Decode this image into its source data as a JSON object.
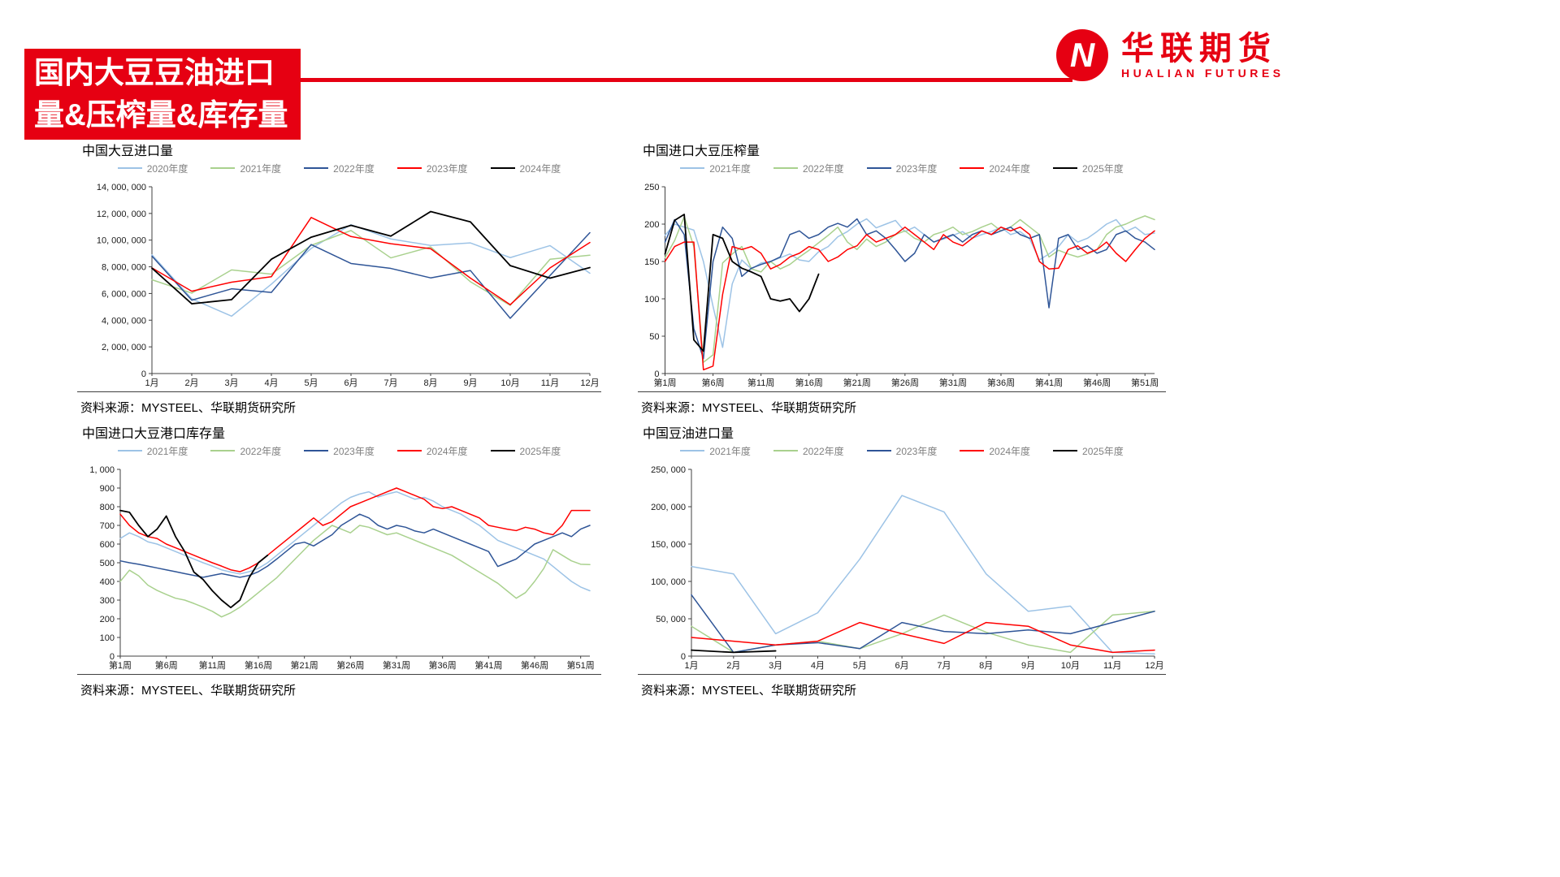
{
  "header": {
    "title_line1": "国内大豆豆油进口",
    "title_line2": "量&压榨量&库存量"
  },
  "logo": {
    "mark": "N",
    "chinese": "华联期货",
    "english": "HUALIAN FUTURES"
  },
  "chart_data": [
    {
      "type": "line",
      "title": "中国大豆进口量",
      "source": "资料来源：MYSTEEL、华联期货研究所",
      "ymin": 0,
      "ymax": 14000000,
      "yticks": [
        0,
        2000000,
        4000000,
        6000000,
        8000000,
        10000000,
        12000000,
        14000000
      ],
      "ytick_labels": [
        "0",
        "2, 000, 000",
        "4, 000, 000",
        "6, 000, 000",
        "8, 000, 000",
        "10, 000, 000",
        "12, 000, 000",
        "14, 000, 000"
      ],
      "x_count": 12,
      "x_labels": [
        "1月",
        "2月",
        "3月",
        "4月",
        "5月",
        "6月",
        "7月",
        "8月",
        "9月",
        "10月",
        "11月",
        "12月"
      ],
      "x_label_positions": [
        0,
        1,
        2,
        3,
        4,
        5,
        6,
        7,
        8,
        9,
        10,
        11
      ],
      "series": [
        {
          "name": "2020年度",
          "color": "#9DC3E6",
          "values": [
            8900000,
            5600000,
            4300000,
            6700000,
            9380000,
            11160000,
            10090000,
            9600000,
            9790000,
            8690000,
            9590000,
            7520000
          ]
        },
        {
          "name": "2021年度",
          "color": "#A9D18E",
          "values": [
            7030000,
            6030000,
            7770000,
            7450000,
            9610000,
            10720000,
            8670000,
            9490000,
            6880000,
            5110000,
            8570000,
            8870000
          ]
        },
        {
          "name": "2022年度",
          "color": "#2F5597",
          "values": [
            8800000,
            5500000,
            6350000,
            6080000,
            9670000,
            8250000,
            7880000,
            7170000,
            7720000,
            4140000,
            7350000,
            10560000
          ]
        },
        {
          "name": "2023年度",
          "color": "#FF0000",
          "values": [
            7920000,
            6170000,
            6850000,
            7260000,
            11700000,
            10270000,
            9730000,
            9360000,
            7150000,
            5160000,
            7920000,
            9820000
          ]
        },
        {
          "name": "2024年度",
          "color": "#000000",
          "values": [
            7900000,
            5230000,
            5540000,
            8570000,
            10220000,
            11110000,
            10300000,
            12140000,
            11370000,
            8090000,
            7150000,
            7940000
          ]
        }
      ]
    },
    {
      "type": "line",
      "title": "中国进口大豆压榨量",
      "source": "资料来源：MYSTEEL、华联期货研究所",
      "ymin": 0,
      "ymax": 250,
      "yticks": [
        0,
        50,
        100,
        150,
        200,
        250
      ],
      "ytick_labels": [
        "0",
        "50",
        "100",
        "150",
        "200",
        "250"
      ],
      "x_count": 52,
      "x_labels": [
        "第1周",
        "第6周",
        "第11周",
        "第16周",
        "第21周",
        "第26周",
        "第31周",
        "第36周",
        "第41周",
        "第46周",
        "第51周"
      ],
      "x_label_positions": [
        0,
        5,
        10,
        15,
        20,
        25,
        30,
        35,
        40,
        45,
        50
      ],
      "series": [
        {
          "name": "2021年度",
          "color": "#9DC3E6",
          "values": [
            185,
            200,
            196,
            192,
            150,
            90,
            35,
            120,
            152,
            140,
            148,
            150,
            155,
            160,
            152,
            150,
            163,
            170,
            183,
            190,
            200,
            207,
            195,
            200,
            205,
            190,
            196,
            186,
            176,
            180,
            185,
            190,
            181,
            186,
            190,
            196,
            186,
            190,
            180,
            152,
            160,
            170,
            186,
            176,
            181,
            190,
            200,
            206,
            190,
            196,
            186,
            188
          ]
        },
        {
          "name": "2022年度",
          "color": "#A9D18E",
          "values": [
            155,
            178,
            210,
            170,
            15,
            25,
            148,
            160,
            170,
            140,
            136,
            150,
            140,
            146,
            156,
            165,
            175,
            185,
            196,
            176,
            166,
            180,
            170,
            176,
            186,
            191,
            181,
            176,
            186,
            190,
            196,
            186,
            190,
            196,
            201,
            191,
            196,
            206,
            196,
            186,
            156,
            165,
            160,
            156,
            160,
            166,
            186,
            196,
            200,
            206,
            211,
            206
          ]
        },
        {
          "name": "2023年度",
          "color": "#2F5597",
          "values": [
            176,
            206,
            186,
            60,
            20,
            150,
            196,
            181,
            130,
            141,
            146,
            150,
            156,
            186,
            191,
            181,
            186,
            196,
            201,
            196,
            207,
            186,
            191,
            181,
            166,
            150,
            161,
            186,
            176,
            181,
            186,
            176,
            186,
            191,
            186,
            191,
            196,
            186,
            181,
            186,
            88,
            181,
            186,
            166,
            171,
            161,
            166,
            186,
            191,
            181,
            176,
            166
          ]
        },
        {
          "name": "2024年度",
          "color": "#FF0000",
          "values": [
            150,
            170,
            176,
            176,
            5,
            10,
            106,
            170,
            166,
            170,
            161,
            140,
            146,
            156,
            161,
            170,
            166,
            150,
            156,
            166,
            171,
            186,
            176,
            181,
            186,
            196,
            186,
            176,
            166,
            186,
            176,
            171,
            181,
            191,
            186,
            196,
            191,
            196,
            186,
            150,
            140,
            141,
            166,
            171,
            161,
            166,
            176,
            161,
            150,
            166,
            181,
            191
          ]
        },
        {
          "name": "2025年度",
          "color": "#000000",
          "values": [
            160,
            205,
            213,
            45,
            30,
            186,
            181,
            150,
            141,
            136,
            130,
            100,
            97,
            100,
            83,
            100,
            133
          ]
        }
      ]
    },
    {
      "type": "line",
      "title": "中国进口大豆港口库存量",
      "source": "资料来源：MYSTEEL、华联期货研究所",
      "ymin": 0,
      "ymax": 1000,
      "yticks": [
        0,
        100,
        200,
        300,
        400,
        500,
        600,
        700,
        800,
        900,
        1000
      ],
      "ytick_labels": [
        "0",
        "100",
        "200",
        "300",
        "400",
        "500",
        "600",
        "700",
        "800",
        "900",
        "1, 000"
      ],
      "x_count": 52,
      "x_labels": [
        "第1周",
        "第6周",
        "第11周",
        "第16周",
        "第21周",
        "第26周",
        "第31周",
        "第36周",
        "第41周",
        "第46周",
        "第51周"
      ],
      "x_label_positions": [
        0,
        5,
        10,
        15,
        20,
        25,
        30,
        35,
        40,
        45,
        50
      ],
      "series": [
        {
          "name": "2021年度",
          "color": "#9DC3E6",
          "values": [
            630,
            660,
            640,
            612,
            600,
            580,
            560,
            540,
            520,
            500,
            482,
            462,
            450,
            440,
            452,
            470,
            500,
            540,
            580,
            620,
            660,
            700,
            740,
            780,
            820,
            850,
            868,
            880,
            852,
            868,
            880,
            860,
            840,
            850,
            830,
            800,
            780,
            760,
            730,
            700,
            660,
            620,
            600,
            580,
            560,
            540,
            520,
            480,
            440,
            400,
            370,
            350
          ]
        },
        {
          "name": "2022年度",
          "color": "#A9D18E",
          "values": [
            400,
            460,
            430,
            380,
            352,
            330,
            310,
            300,
            282,
            262,
            240,
            210,
            232,
            262,
            300,
            340,
            380,
            420,
            470,
            520,
            570,
            620,
            660,
            700,
            680,
            660,
            700,
            690,
            670,
            650,
            660,
            640,
            620,
            600,
            580,
            560,
            540,
            510,
            480,
            450,
            420,
            390,
            350,
            310,
            340,
            400,
            470,
            570,
            540,
            510,
            492,
            490
          ]
        },
        {
          "name": "2023年度",
          "color": "#2F5597",
          "values": [
            510,
            500,
            492,
            482,
            472,
            462,
            452,
            442,
            432,
            422,
            432,
            442,
            432,
            422,
            432,
            452,
            482,
            520,
            560,
            600,
            610,
            590,
            620,
            650,
            700,
            730,
            760,
            740,
            700,
            680,
            700,
            690,
            670,
            660,
            680,
            660,
            640,
            620,
            600,
            580,
            560,
            480,
            500,
            520,
            560,
            600,
            620,
            640,
            660,
            640,
            680,
            700
          ]
        },
        {
          "name": "2024年度",
          "color": "#FF0000",
          "values": [
            760,
            700,
            660,
            640,
            630,
            600,
            580,
            560,
            540,
            520,
            500,
            482,
            462,
            452,
            472,
            500,
            540,
            580,
            620,
            660,
            700,
            740,
            700,
            720,
            760,
            800,
            820,
            840,
            860,
            880,
            900,
            880,
            860,
            840,
            800,
            790,
            800,
            780,
            760,
            740,
            700,
            690,
            680,
            672,
            690,
            680,
            660,
            650,
            700,
            780,
            780,
            780
          ]
        },
        {
          "name": "2025年度",
          "color": "#000000",
          "values": [
            780,
            770,
            700,
            640,
            680,
            750,
            640,
            560,
            450,
            410,
            350,
            300,
            260,
            300,
            420,
            500,
            540
          ]
        }
      ]
    },
    {
      "type": "line",
      "title": "中国豆油进口量",
      "source": "资料来源：MYSTEEL、华联期货研究所",
      "ymin": 0,
      "ymax": 250000,
      "yticks": [
        0,
        50000,
        100000,
        150000,
        200000,
        250000
      ],
      "ytick_labels": [
        "0",
        "50, 000",
        "100, 000",
        "150, 000",
        "200, 000",
        "250, 000"
      ],
      "x_count": 12,
      "x_labels": [
        "1月",
        "2月",
        "3月",
        "4月",
        "5月",
        "6月",
        "7月",
        "8月",
        "9月",
        "10月",
        "11月",
        "12月"
      ],
      "x_label_positions": [
        0,
        1,
        2,
        3,
        4,
        5,
        6,
        7,
        8,
        9,
        10,
        11
      ],
      "series": [
        {
          "name": "2021年度",
          "color": "#9DC3E6",
          "values": [
            120000,
            110000,
            30000,
            58000,
            130000,
            215000,
            193000,
            110000,
            60000,
            67000,
            5000,
            3000
          ]
        },
        {
          "name": "2022年度",
          "color": "#A9D18E",
          "values": [
            40000,
            5000,
            15000,
            20000,
            10000,
            30000,
            55000,
            32000,
            15000,
            5000,
            55000,
            60000
          ]
        },
        {
          "name": "2023年度",
          "color": "#2F5597",
          "values": [
            82000,
            5000,
            15000,
            18000,
            10000,
            45000,
            33000,
            30000,
            35000,
            30000,
            45000,
            60000
          ]
        },
        {
          "name": "2024年度",
          "color": "#FF0000",
          "values": [
            25000,
            20000,
            15000,
            20000,
            45000,
            30000,
            17000,
            45000,
            40000,
            15000,
            5000,
            8000
          ]
        },
        {
          "name": "2025年度",
          "color": "#000000",
          "values": [
            8000,
            5000,
            7000
          ]
        }
      ]
    }
  ]
}
